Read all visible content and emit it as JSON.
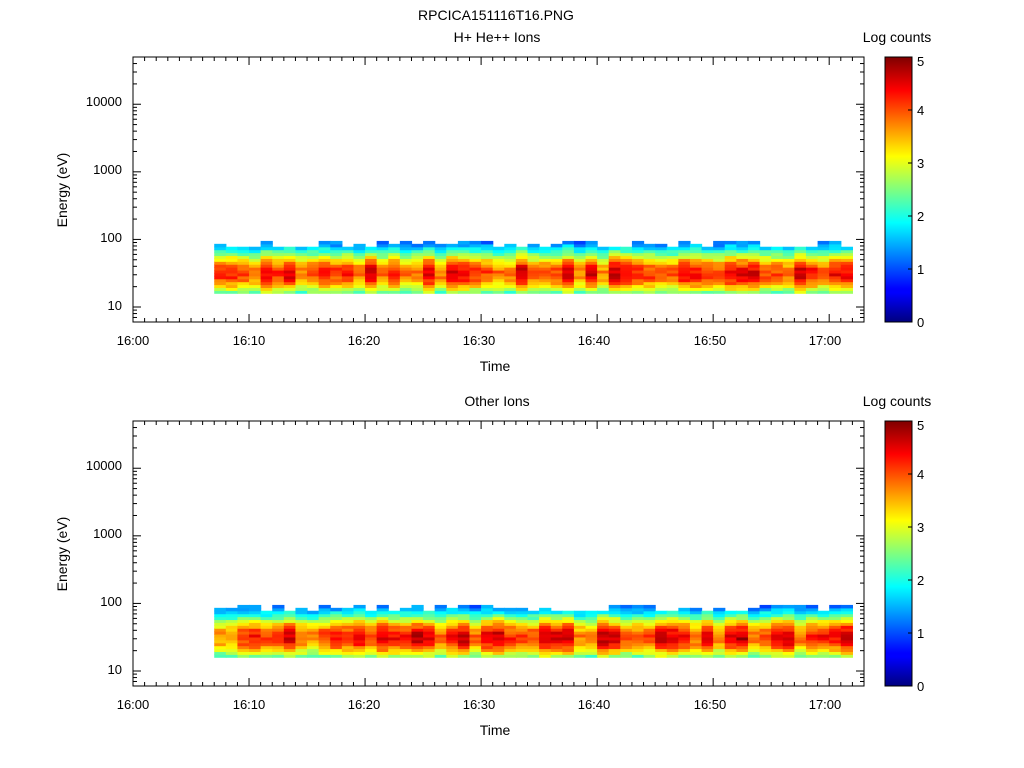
{
  "figure_title": "RPCICA151116T16.PNG",
  "chart_data": [
    {
      "type": "heatmap",
      "title": "H+ He++ Ions",
      "xlabel": "Time",
      "ylabel": "Energy (eV)",
      "colorbar_label": "Log counts",
      "colorbar_ticks": [
        "0",
        "1",
        "2",
        "3",
        "4",
        "5"
      ],
      "colorbar_range": [
        0,
        5
      ],
      "colormap": "jet",
      "x_range": [
        "16:00",
        "17:03"
      ],
      "x_ticks": [
        "16:00",
        "16:10",
        "16:20",
        "16:30",
        "16:40",
        "16:50",
        "17:00"
      ],
      "y_scale": "log",
      "y_range": [
        6,
        50000
      ],
      "y_ticks": [
        "10",
        "100",
        "1000",
        "10000"
      ],
      "data_time_range": [
        "16:07",
        "17:02"
      ],
      "energy_band_eV": [
        16,
        95
      ],
      "peak_energy_eV": 32,
      "peak_log_counts": 4.3
    },
    {
      "type": "heatmap",
      "title": "Other Ions",
      "xlabel": "Time",
      "ylabel": "Energy (eV)",
      "colorbar_label": "Log counts",
      "colorbar_ticks": [
        "0",
        "1",
        "2",
        "3",
        "4",
        "5"
      ],
      "colorbar_range": [
        0,
        5
      ],
      "colormap": "jet",
      "x_range": [
        "16:00",
        "17:03"
      ],
      "x_ticks": [
        "16:00",
        "16:10",
        "16:20",
        "16:30",
        "16:40",
        "16:50",
        "17:00"
      ],
      "y_scale": "log",
      "y_range": [
        6,
        50000
      ],
      "y_ticks": [
        "10",
        "100",
        "1000",
        "10000"
      ],
      "data_time_range": [
        "16:07",
        "17:02"
      ],
      "energy_band_eV": [
        16,
        95
      ],
      "peak_energy_eV": 32,
      "peak_log_counts": 4.3
    }
  ]
}
